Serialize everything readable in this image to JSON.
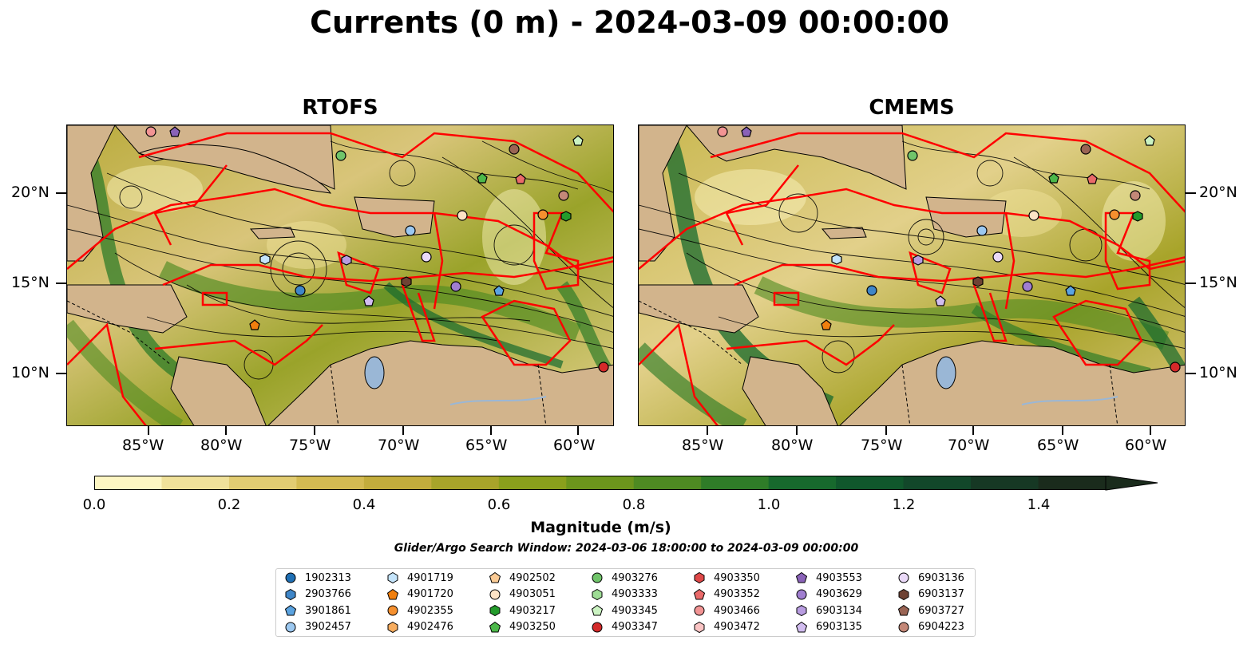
{
  "title": "Currents (0 m) - 2024-03-09 00:00:00",
  "panels": [
    {
      "title": "RTOFS"
    },
    {
      "title": "CMEMS"
    }
  ],
  "axes": {
    "lat_labels": [
      "20°N",
      "15°N",
      "10°N"
    ],
    "lon_labels": [
      "85°W",
      "80°W",
      "75°W",
      "70°W",
      "65°W",
      "60°W"
    ]
  },
  "colorbar": {
    "title": "Magnitude (m/s)",
    "range": [
      0.0,
      1.5
    ],
    "extend": "max",
    "tick_labels": [
      "0.0",
      "0.2",
      "0.4",
      "0.6",
      "0.8",
      "1.0",
      "1.2",
      "1.4"
    ],
    "colors": [
      "#fdf6c3",
      "#f0e19a",
      "#e2cc72",
      "#d4bb52",
      "#c3ad3c",
      "#a8a42a",
      "#8aa01c",
      "#6c951c",
      "#4e8a22",
      "#2f7c28",
      "#17692d",
      "#10572c",
      "#12472a",
      "#163824",
      "#1a2b1c"
    ]
  },
  "colors": {
    "land": "#d2b48c",
    "water_body": "#9ab7d6",
    "region_outline": "#ff0000",
    "streamline": "#000000"
  },
  "search_window": "Glider/Argo Search Window: 2024-03-06 18:00:00 to 2024-03-09 00:00:00",
  "legend": [
    {
      "id": "1902313",
      "marker": "circle",
      "color": "#1f6fb4"
    },
    {
      "id": "2903766",
      "marker": "hexagon",
      "color": "#3f86c8"
    },
    {
      "id": "3901861",
      "marker": "pentagon",
      "color": "#5ba3e0"
    },
    {
      "id": "3902457",
      "marker": "circle",
      "color": "#9cc8f0"
    },
    {
      "id": "4901719",
      "marker": "hexagon",
      "color": "#c4e4fb"
    },
    {
      "id": "4901720",
      "marker": "pentagon",
      "color": "#f07f0e"
    },
    {
      "id": "4902355",
      "marker": "circle",
      "color": "#f5902f"
    },
    {
      "id": "4902476",
      "marker": "hexagon",
      "color": "#f8ad5f"
    },
    {
      "id": "4902502",
      "marker": "pentagon",
      "color": "#fbcb95"
    },
    {
      "id": "4903051",
      "marker": "circle",
      "color": "#fde3c6"
    },
    {
      "id": "4903217",
      "marker": "hexagon",
      "color": "#239b2b"
    },
    {
      "id": "4903250",
      "marker": "pentagon",
      "color": "#4cb84a"
    },
    {
      "id": "4903276",
      "marker": "circle",
      "color": "#70c46a"
    },
    {
      "id": "4903333",
      "marker": "hexagon",
      "color": "#9edc95"
    },
    {
      "id": "4903345",
      "marker": "pentagon",
      "color": "#cbf3c2"
    },
    {
      "id": "4903347",
      "marker": "circle",
      "color": "#d42a2a"
    },
    {
      "id": "4903350",
      "marker": "hexagon",
      "color": "#df4848"
    },
    {
      "id": "4903352",
      "marker": "pentagon",
      "color": "#ea6a6a"
    },
    {
      "id": "4903466",
      "marker": "circle",
      "color": "#f29494"
    },
    {
      "id": "4903472",
      "marker": "hexagon",
      "color": "#fac4c4"
    },
    {
      "id": "4903553",
      "marker": "pentagon",
      "color": "#8a62b8"
    },
    {
      "id": "4903629",
      "marker": "circle",
      "color": "#a07ed0"
    },
    {
      "id": "6903134",
      "marker": "hexagon",
      "color": "#b89ce0"
    },
    {
      "id": "6903135",
      "marker": "pentagon",
      "color": "#d2bdf0"
    },
    {
      "id": "6903136",
      "marker": "circle",
      "color": "#ead9f8"
    },
    {
      "id": "6903137",
      "marker": "hexagon",
      "color": "#6e4234"
    },
    {
      "id": "6903727",
      "marker": "pentagon",
      "color": "#9a6454"
    },
    {
      "id": "6904223",
      "marker": "circle",
      "color": "#c48878"
    }
  ]
}
